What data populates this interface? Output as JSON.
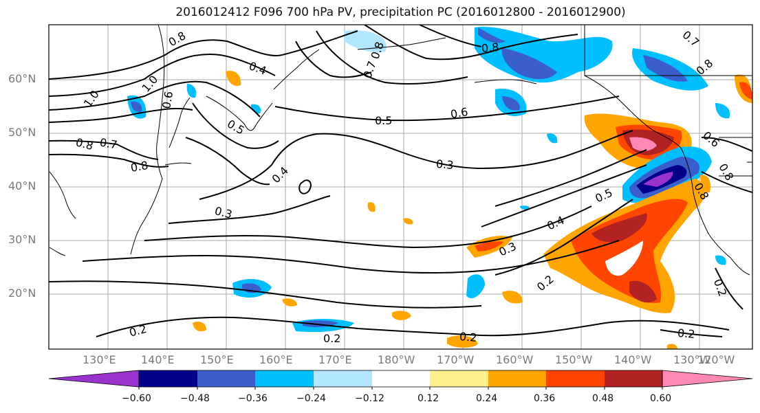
{
  "title": "2016012412 F096 700 hPa PV, precipitation PC (2016012800 - 2016012900)",
  "lat_labels": [
    "60°N",
    "50°N",
    "40°N",
    "30°N",
    "20°N"
  ],
  "lon_labels": [
    "130°E",
    "140°E",
    "150°E",
    "160°E",
    "170°E",
    "180°W",
    "170°W",
    "160°W",
    "150°W",
    "140°W",
    "130°W",
    "120°W"
  ],
  "contour_labels": [
    "0.8",
    "1.0",
    "1.0",
    "0.4",
    "0.8",
    "0.7",
    "0.8",
    "0.6",
    "0.5",
    "0.6",
    "0.8",
    "0.8",
    "0.7",
    "0.8",
    "0.7",
    "0.8",
    "0.4",
    "0.3",
    "0.3",
    "0.5",
    "0.4",
    "0.3",
    "0.2",
    "0.2",
    "0.2",
    "0.2",
    "0.2",
    "0.2",
    "0.6",
    "0.8"
  ],
  "colorbar": {
    "colors": [
      "#9a32cd",
      "#00008b",
      "#3a5fcd",
      "#00bfff",
      "#b2e5ff",
      "#ffffff",
      "#fff08c",
      "#ffa500",
      "#ff4500",
      "#b22222",
      "#ff88b5"
    ],
    "tick_labels": [
      "−0.60",
      "−0.48",
      "−0.36",
      "−0.24",
      "−0.12",
      "0.12",
      "0.24",
      "0.36",
      "0.48",
      "0.60"
    ]
  }
}
